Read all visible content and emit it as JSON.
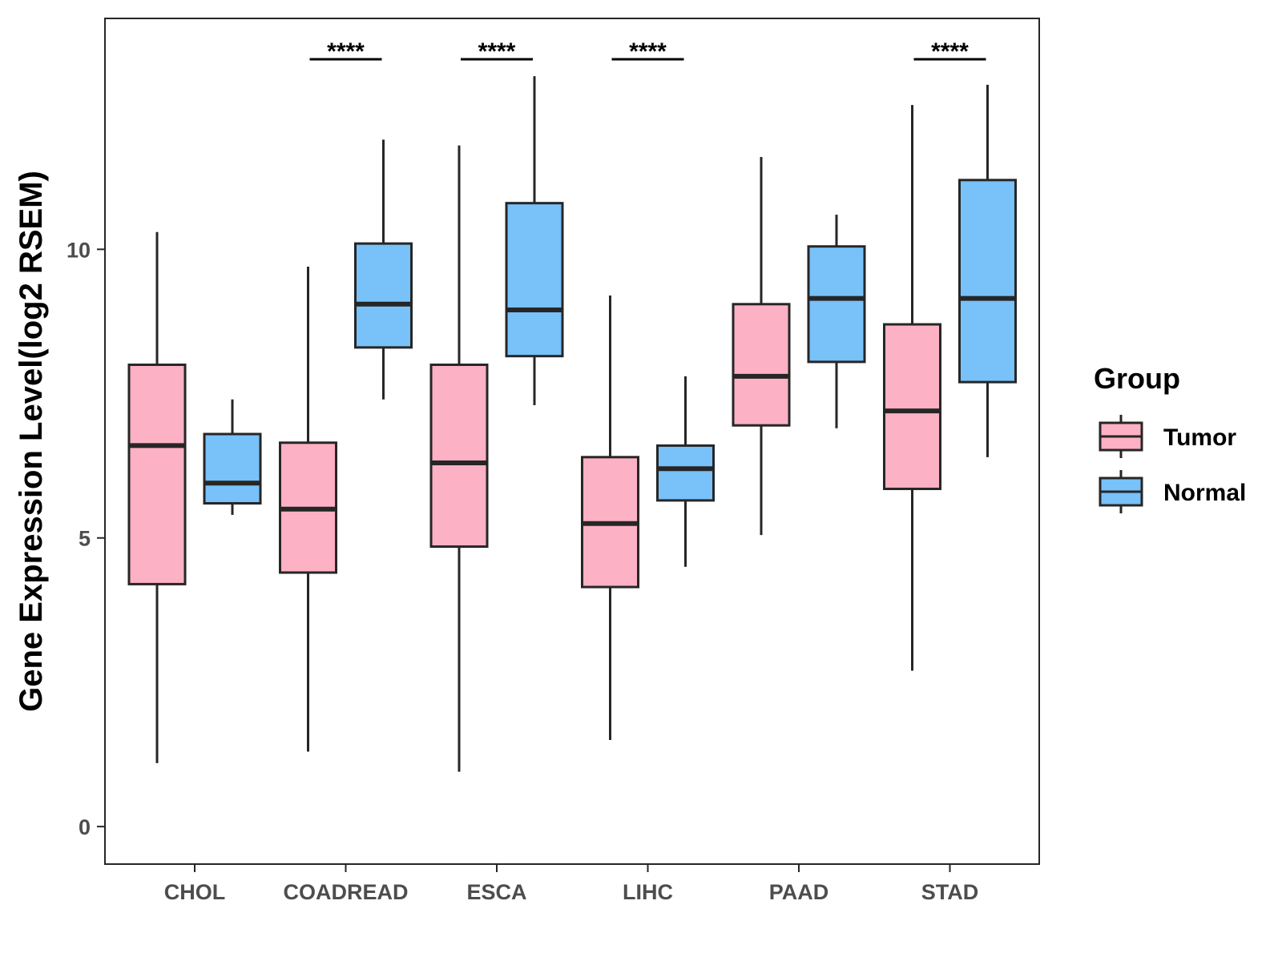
{
  "chart_data": {
    "type": "boxplot",
    "title": "",
    "xlabel": "",
    "ylabel": "Gene Expression Level(log2 RSEM)",
    "ylim": [
      -0.65,
      14.0
    ],
    "yticks": [
      0,
      5,
      10
    ],
    "categories": [
      "CHOL",
      "COADREAD",
      "ESCA",
      "LIHC",
      "PAAD",
      "STAD"
    ],
    "legend": {
      "title": "Group",
      "position": "right",
      "entries": [
        "Tumor",
        "Normal"
      ]
    },
    "colors": {
      "Tumor": "#fdb1c4",
      "Normal": "#78c1f9",
      "outline": "#262626"
    },
    "series": [
      {
        "name": "Tumor",
        "boxes": [
          {
            "category": "CHOL",
            "whisker_low": 1.1,
            "q1": 4.2,
            "median": 6.6,
            "q3": 8.0,
            "whisker_high": 10.3
          },
          {
            "category": "COADREAD",
            "whisker_low": 1.3,
            "q1": 4.4,
            "median": 5.5,
            "q3": 6.65,
            "whisker_high": 9.7
          },
          {
            "category": "ESCA",
            "whisker_low": 0.95,
            "q1": 4.85,
            "median": 6.3,
            "q3": 8.0,
            "whisker_high": 11.8
          },
          {
            "category": "LIHC",
            "whisker_low": 1.5,
            "q1": 4.15,
            "median": 5.25,
            "q3": 6.4,
            "whisker_high": 9.2
          },
          {
            "category": "PAAD",
            "whisker_low": 5.05,
            "q1": 6.95,
            "median": 7.8,
            "q3": 9.05,
            "whisker_high": 11.6
          },
          {
            "category": "STAD",
            "whisker_low": 2.7,
            "q1": 5.85,
            "median": 7.2,
            "q3": 8.7,
            "whisker_high": 12.5
          }
        ]
      },
      {
        "name": "Normal",
        "boxes": [
          {
            "category": "CHOL",
            "whisker_low": 5.4,
            "q1": 5.6,
            "median": 5.95,
            "q3": 6.8,
            "whisker_high": 7.4
          },
          {
            "category": "COADREAD",
            "whisker_low": 7.4,
            "q1": 8.3,
            "median": 9.05,
            "q3": 10.1,
            "whisker_high": 11.9
          },
          {
            "category": "ESCA",
            "whisker_low": 7.3,
            "q1": 8.15,
            "median": 8.95,
            "q3": 10.8,
            "whisker_high": 13.0
          },
          {
            "category": "LIHC",
            "whisker_low": 4.5,
            "q1": 5.65,
            "median": 6.2,
            "q3": 6.6,
            "whisker_high": 7.8
          },
          {
            "category": "PAAD",
            "whisker_low": 6.9,
            "q1": 8.05,
            "median": 9.15,
            "q3": 10.05,
            "whisker_high": 10.6
          },
          {
            "category": "STAD",
            "whisker_low": 6.4,
            "q1": 7.7,
            "median": 9.15,
            "q3": 11.2,
            "whisker_high": 12.85
          }
        ]
      }
    ],
    "annotations": [
      {
        "category": "COADREAD",
        "label": "****"
      },
      {
        "category": "ESCA",
        "label": "****"
      },
      {
        "category": "LIHC",
        "label": "****"
      },
      {
        "category": "STAD",
        "label": "****"
      }
    ]
  }
}
